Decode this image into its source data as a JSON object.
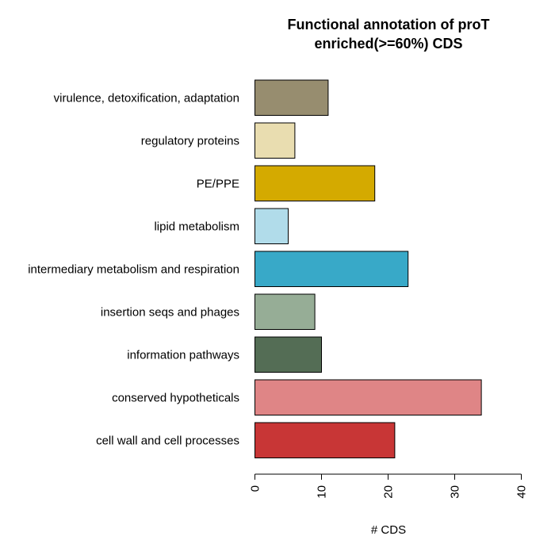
{
  "chart_data": {
    "type": "bar",
    "orientation": "horizontal",
    "title": [
      "Functional annotation of proT",
      "enriched(>=60%) CDS"
    ],
    "xlabel": "# CDS",
    "ylabel": "",
    "xlim": [
      0,
      40
    ],
    "xticks": [
      0,
      10,
      20,
      30,
      40
    ],
    "grid": false,
    "legend": "none",
    "categories": [
      "virulence, detoxification, adaptation",
      "regulatory proteins",
      "PE/PPE",
      "lipid metabolism",
      "intermediary metabolism and respiration",
      "insertion seqs and phages",
      "information pathways",
      "conserved hypotheticals",
      "cell wall and cell processes"
    ],
    "values": [
      11,
      6,
      18,
      5,
      23,
      9,
      10,
      34,
      21
    ],
    "colors": [
      "#978d6f",
      "#e9ddb0",
      "#d4aa00",
      "#b1dcea",
      "#38a9c8",
      "#96ad96",
      "#546d55",
      "#df8586",
      "#c83636"
    ]
  }
}
